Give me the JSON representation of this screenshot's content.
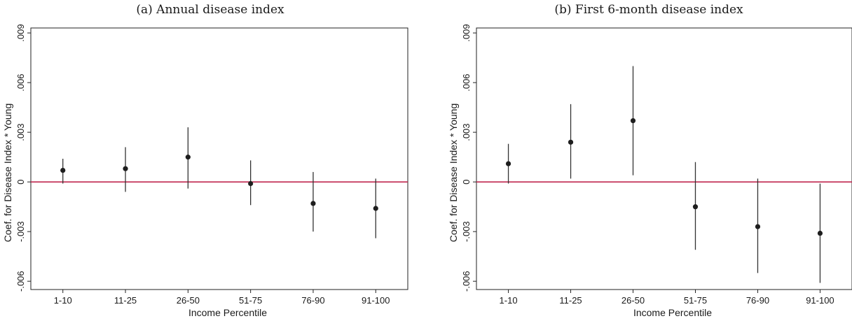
{
  "chart_data": [
    {
      "type": "scatter",
      "title": "(a) Annual disease index",
      "xlabel": "Income Percentile",
      "ylabel": "Coef. for Disease Index * Young",
      "categories": [
        "1-10",
        "11-25",
        "26-50",
        "51-75",
        "76-90",
        "91-100"
      ],
      "y_ticks": [
        -0.006,
        -0.003,
        0,
        0.003,
        0.006,
        0.009
      ],
      "y_tick_labels": [
        "-.006",
        "-.003",
        "0",
        ".003",
        ".006",
        ".009"
      ],
      "ylim": [
        -0.0065,
        0.0093
      ],
      "reference_line": 0,
      "reference_color": "#c0284f",
      "points": [
        {
          "estimate": 0.0007,
          "ci_low": -0.0001,
          "ci_high": 0.0014
        },
        {
          "estimate": 0.0008,
          "ci_low": -0.0006,
          "ci_high": 0.0021
        },
        {
          "estimate": 0.0015,
          "ci_low": -0.0004,
          "ci_high": 0.0033
        },
        {
          "estimate": -0.0001,
          "ci_low": -0.0014,
          "ci_high": 0.0013
        },
        {
          "estimate": -0.0013,
          "ci_low": -0.003,
          "ci_high": 0.0006
        },
        {
          "estimate": -0.0016,
          "ci_low": -0.0034,
          "ci_high": 0.0002
        }
      ],
      "grid": false
    },
    {
      "type": "scatter",
      "title": "(b) First 6-month disease index",
      "xlabel": "Income Percentile",
      "ylabel": "Coef. for Disease Index * Young",
      "categories": [
        "1-10",
        "11-25",
        "26-50",
        "51-75",
        "76-90",
        "91-100"
      ],
      "y_ticks": [
        -0.006,
        -0.003,
        0,
        0.003,
        0.006,
        0.009
      ],
      "y_tick_labels": [
        "-.006",
        "-.003",
        "0",
        ".003",
        ".006",
        ".009"
      ],
      "ylim": [
        -0.0065,
        0.0093
      ],
      "reference_line": 0,
      "reference_color": "#c0284f",
      "points": [
        {
          "estimate": 0.0011,
          "ci_low": -0.0001,
          "ci_high": 0.0023
        },
        {
          "estimate": 0.0024,
          "ci_low": 0.0002,
          "ci_high": 0.0047
        },
        {
          "estimate": 0.0037,
          "ci_low": 0.0004,
          "ci_high": 0.007
        },
        {
          "estimate": -0.0015,
          "ci_low": -0.0041,
          "ci_high": 0.0012
        },
        {
          "estimate": -0.0027,
          "ci_low": -0.0055,
          "ci_high": 0.0002
        },
        {
          "estimate": -0.0031,
          "ci_low": -0.0061,
          "ci_high": -0.0001
        }
      ],
      "grid": false
    }
  ]
}
